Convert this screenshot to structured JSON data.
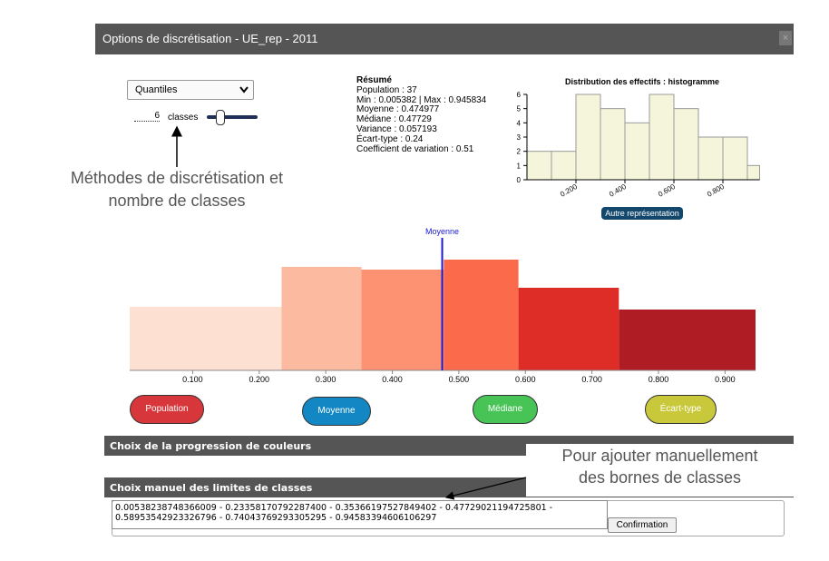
{
  "dialog": {
    "title": "Options de discrétisation - UE_rep - 2011",
    "close": "×"
  },
  "method": {
    "selected": "Quantiles"
  },
  "classes": {
    "count": 6,
    "label": "classes"
  },
  "annotations": {
    "methods": [
      "Méthodes de discrétisation et",
      "nombre de classes"
    ],
    "manual": [
      "Pour ajouter manuellement",
      "des bornes de classes"
    ]
  },
  "summary": {
    "title": "Résumé",
    "lines": [
      "Population : 37",
      "Min : 0.005382 | Max : 0.945834",
      "Moyenne : 0.474977",
      "Médiane : 0.47729",
      "Variance : 0.057193",
      "Écart-type : 0.24",
      "Coefficient de variation : 0.51"
    ]
  },
  "histogram": {
    "type": "histogram",
    "title": "Distribution des effectifs : histogramme",
    "bins": [
      0,
      0.1,
      0.2,
      0.3,
      0.4,
      0.5,
      0.6,
      0.7,
      0.8,
      0.9,
      0.95
    ],
    "values": [
      2,
      2,
      6,
      5,
      4,
      6,
      5,
      3,
      3,
      1
    ],
    "color": "#f5f5dc",
    "xlim": [
      0,
      0.95
    ],
    "xticks": [
      {
        "value": 0.2,
        "label": "0.200"
      },
      {
        "value": 0.4,
        "label": "0.400"
      },
      {
        "value": 0.6,
        "label": "0.600"
      },
      {
        "value": 0.8,
        "label": "0.800"
      }
    ],
    "ylim": [
      0,
      6
    ],
    "yticks": [
      0,
      1,
      2,
      3,
      4,
      5,
      6
    ],
    "button": "Autre représentation"
  },
  "class_chart": {
    "type": "class_bars",
    "breaks": [
      0.00538238748366009,
      0.233581707922874,
      0.353661975278494,
      0.477290211947258,
      0.589535429233268,
      0.740437692933053,
      0.945833946061063
    ],
    "values": [
      70,
      114,
      111,
      122,
      91,
      67
    ],
    "ylim": [
      0,
      146
    ],
    "colors": [
      "#fee0d2",
      "#fcbba1",
      "#fc9272",
      "#fb6a4a",
      "#de2d26",
      "#b01c24"
    ],
    "xlim": [
      0.00538238748366009,
      0.945833946061063
    ],
    "xticks": [
      {
        "value": 0.1,
        "label": "0.100"
      },
      {
        "value": 0.2,
        "label": "0.200"
      },
      {
        "value": 0.3,
        "label": "0.300"
      },
      {
        "value": 0.4,
        "label": "0.400"
      },
      {
        "value": 0.5,
        "label": "0.500"
      },
      {
        "value": 0.6,
        "label": "0.600"
      },
      {
        "value": 0.7,
        "label": "0.700"
      },
      {
        "value": 0.8,
        "label": "0.800"
      },
      {
        "value": 0.9,
        "label": "0.900"
      }
    ],
    "mean_line": {
      "label": "Moyenne",
      "value": 0.474977
    }
  },
  "buttons": [
    "Population",
    "Moyenne",
    "Médiane",
    "Écart-type"
  ],
  "sections": {
    "colors": "Choix de la progression de couleurs",
    "manual": "Choix manuel des limites de classes"
  },
  "manual": {
    "lines": [
      "0.00538238748366009 - 0.23358170792287400 - 0.35366197527849402 - 0.47729021194725801 -",
      "0.58953542923326796 - 0.74043769293305295 - 0.94583394606106297"
    ],
    "button": "Confirmation"
  }
}
